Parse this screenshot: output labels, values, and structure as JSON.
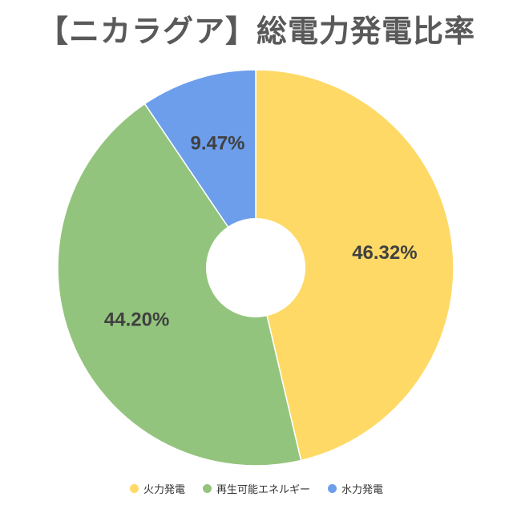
{
  "chart_data": {
    "type": "pie",
    "title": "【ニカラグア】総電力発電比率",
    "donut": true,
    "legend_position": "bottom",
    "slices": [
      {
        "name": "火力発電",
        "value": 46.32,
        "label": "46.32%",
        "color": "#FFD966"
      },
      {
        "name": "再生可能エネルギー",
        "value": 44.2,
        "label": "44.20%",
        "color": "#93C47D"
      },
      {
        "name": "水力発電",
        "value": 9.47,
        "label": "9.47%",
        "color": "#6D9EEB"
      }
    ]
  }
}
